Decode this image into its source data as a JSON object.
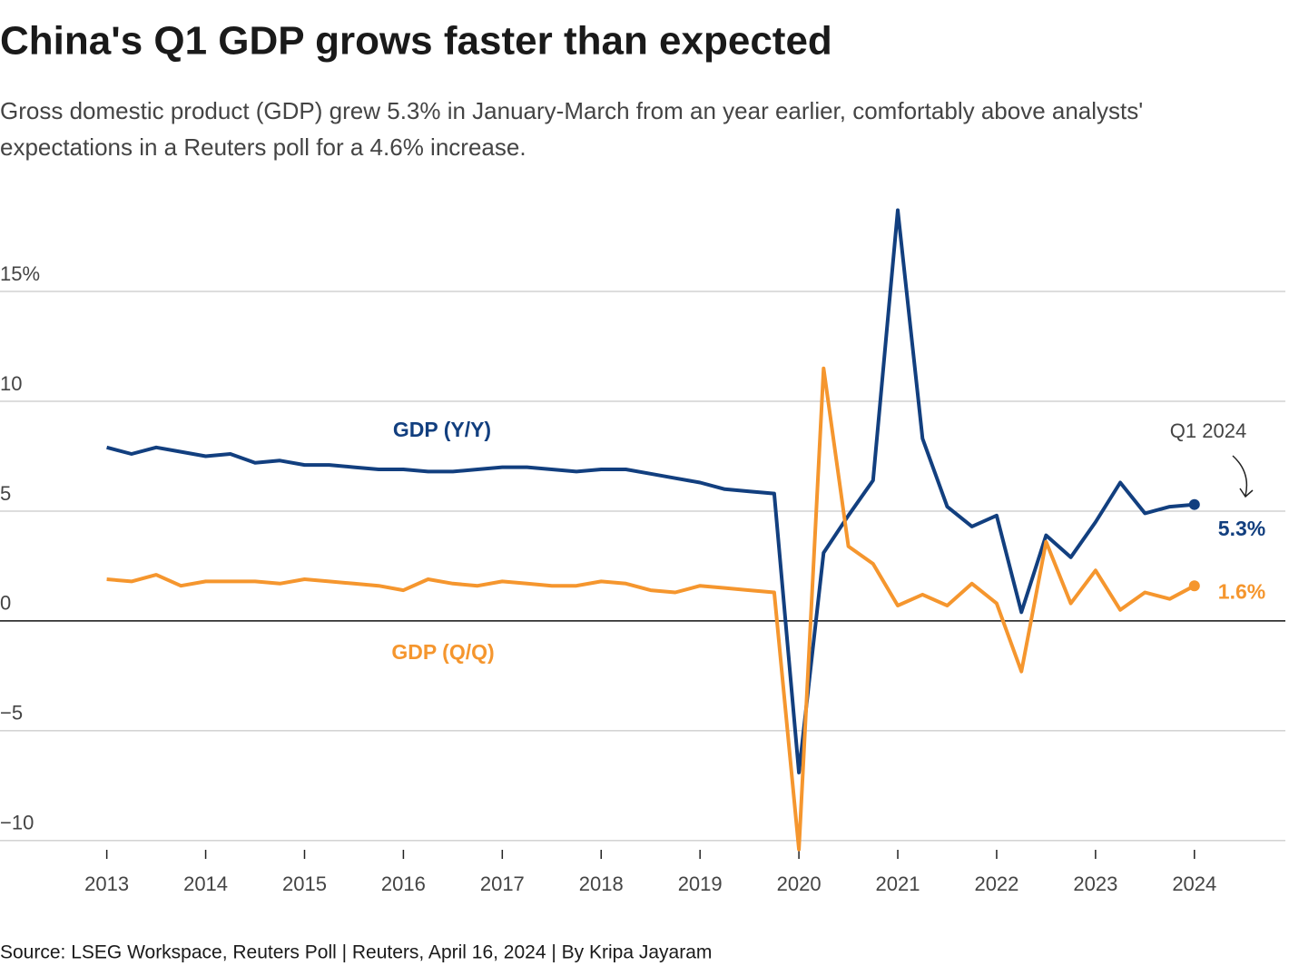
{
  "chart_data": {
    "type": "line",
    "title": "China's Q1 GDP grows faster than expected",
    "subtitle": "Gross domestic product (GDP) grew 5.3% in January-March from an year earlier, comfortably above analysts' expectations in a Reuters poll for a 4.6% increase.",
    "source": "Source: LSEG Workspace, Reuters Poll | Reuters, April 16, 2024 | By Kripa Jayaram",
    "annotation": "Q1 2024",
    "x": [
      2013,
      2013.25,
      2013.5,
      2013.75,
      2014,
      2014.25,
      2014.5,
      2014.75,
      2015,
      2015.25,
      2015.5,
      2015.75,
      2016,
      2016.25,
      2016.5,
      2016.75,
      2017,
      2017.25,
      2017.5,
      2017.75,
      2018,
      2018.25,
      2018.5,
      2018.75,
      2019,
      2019.25,
      2019.5,
      2019.75,
      2020,
      2020.25,
      2020.5,
      2020.75,
      2021,
      2021.25,
      2021.5,
      2021.75,
      2022,
      2022.25,
      2022.5,
      2022.75,
      2023,
      2023.25,
      2023.5,
      2023.75,
      2024
    ],
    "series": [
      {
        "name": "GDP (Y/Y)",
        "color": "#123f7f",
        "values": [
          7.9,
          7.6,
          7.9,
          7.7,
          7.5,
          7.6,
          7.2,
          7.3,
          7.1,
          7.1,
          7.0,
          6.9,
          6.9,
          6.8,
          6.8,
          6.9,
          7.0,
          7.0,
          6.9,
          6.8,
          6.9,
          6.9,
          6.7,
          6.5,
          6.3,
          6.0,
          5.9,
          5.8,
          -6.9,
          3.1,
          4.8,
          6.4,
          18.7,
          8.3,
          5.2,
          4.3,
          4.8,
          0.4,
          3.9,
          2.9,
          4.5,
          6.3,
          4.9,
          5.2,
          5.3
        ],
        "value_labels": [
          null,
          null,
          null,
          null,
          null,
          null,
          null,
          null,
          null,
          null,
          null,
          null,
          null,
          null,
          null,
          null,
          null,
          null,
          null,
          null,
          null,
          null,
          null,
          null,
          null,
          null,
          null,
          null,
          null,
          null,
          null,
          null,
          null,
          null,
          null,
          null,
          null,
          null,
          null,
          null,
          null,
          null,
          null,
          null,
          "5.3%"
        ]
      },
      {
        "name": "GDP (Q/Q)",
        "color": "#f5962e",
        "values": [
          1.9,
          1.8,
          2.1,
          1.6,
          1.8,
          1.8,
          1.8,
          1.7,
          1.9,
          1.8,
          1.7,
          1.6,
          1.4,
          1.9,
          1.7,
          1.6,
          1.8,
          1.7,
          1.6,
          1.6,
          1.8,
          1.7,
          1.4,
          1.3,
          1.6,
          1.5,
          1.4,
          1.3,
          -10.4,
          11.5,
          3.4,
          2.6,
          0.7,
          1.2,
          0.7,
          1.7,
          0.8,
          -2.3,
          3.6,
          0.8,
          2.3,
          0.5,
          1.3,
          1.0,
          1.6
        ],
        "value_labels": [
          null,
          null,
          null,
          null,
          null,
          null,
          null,
          null,
          null,
          null,
          null,
          null,
          null,
          null,
          null,
          null,
          null,
          null,
          null,
          null,
          null,
          null,
          null,
          null,
          null,
          null,
          null,
          null,
          null,
          null,
          null,
          null,
          null,
          null,
          null,
          null,
          null,
          null,
          null,
          null,
          null,
          null,
          null,
          null,
          "1.6%"
        ]
      }
    ],
    "xlim": [
      2011.92,
      2024.92
    ],
    "xticks": [
      2013,
      2014,
      2015,
      2016,
      2017,
      2018,
      2019,
      2020,
      2021,
      2022,
      2023,
      2024
    ],
    "ylim": [
      -10.5,
      20
    ],
    "yticks": [
      {
        "value": -10,
        "label": "−10"
      },
      {
        "value": -5,
        "label": "−5"
      },
      0,
      5,
      10,
      {
        "value": 15,
        "label": "15%"
      }
    ],
    "grid": true
  }
}
